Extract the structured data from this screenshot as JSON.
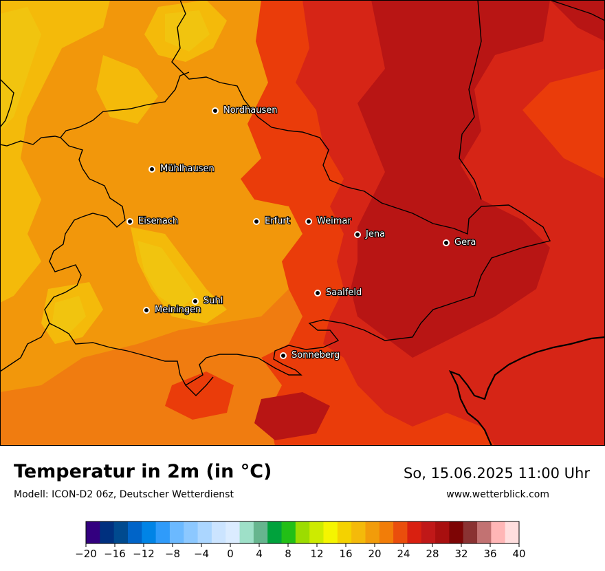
{
  "map": {
    "region": "Thüringen",
    "cities": [
      {
        "name": "Nordhausen"
      },
      {
        "name": "Mühlhausen"
      },
      {
        "name": "Eisenach"
      },
      {
        "name": "Erfurt"
      },
      {
        "name": "Weimar"
      },
      {
        "name": "Jena"
      },
      {
        "name": "Gera"
      },
      {
        "name": "Saalfeld"
      },
      {
        "name": "Suhl"
      },
      {
        "name": "Meiningen"
      },
      {
        "name": "Sonneberg"
      }
    ]
  },
  "footer": {
    "title": "Temperatur in 2m (in °C)",
    "subtitle": "Modell: ICON-D2 06z, Deutscher Wetterdienst",
    "datetime": "So, 15.06.2025 11:00 Uhr",
    "website": "www.wetterblick.com"
  },
  "legend": {
    "min": -20,
    "max": 40,
    "step": 2,
    "tick_labels": [
      "−20",
      "−16",
      "−12",
      "−8",
      "−4",
      "0",
      "4",
      "8",
      "12",
      "16",
      "20",
      "24",
      "28",
      "32",
      "36",
      "40"
    ],
    "colors": [
      "#33007f",
      "#00307f",
      "#004a8f",
      "#0064c8",
      "#0084e6",
      "#2f9bfa",
      "#6bb9ff",
      "#8cc8ff",
      "#abd6ff",
      "#cbe4ff",
      "#dbecff",
      "#9ee0c8",
      "#66b58e",
      "#00a23c",
      "#22bf16",
      "#9cdc00",
      "#cdeb00",
      "#f5f500",
      "#f4d200",
      "#f4ba0a",
      "#f29c0a",
      "#f27d08",
      "#ea4e0c",
      "#d92010",
      "#c01818",
      "#a80f0f",
      "#7d0505",
      "#8a3232",
      "#c27272",
      "#ffb6b6",
      "#ffdede"
    ]
  },
  "temp_colors": {
    "t16": "#f1c40f",
    "t18": "#f3b80d",
    "t20": "#f2970b",
    "t22": "#f07c10",
    "t24": "#ea3c0a",
    "t26": "#d62516",
    "t28": "#b81514",
    "border": "#000000"
  }
}
